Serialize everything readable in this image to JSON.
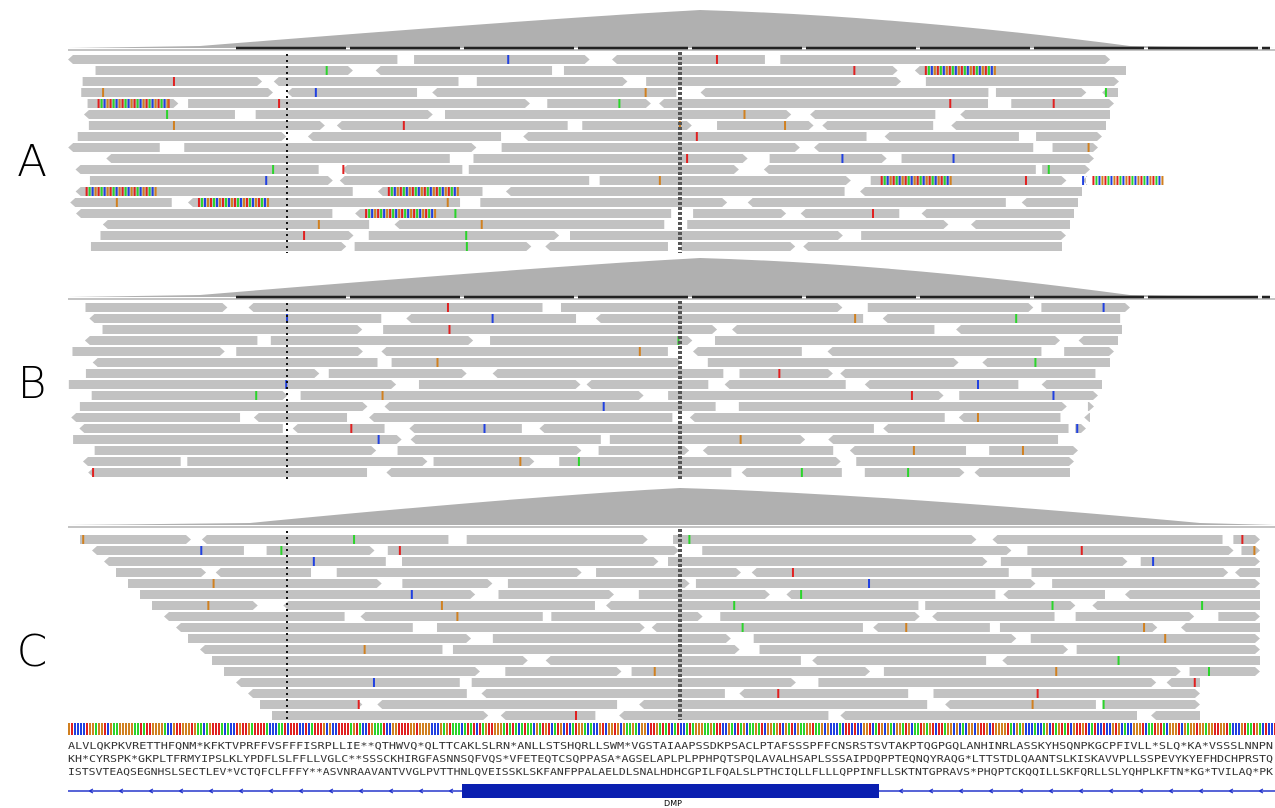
{
  "panels": [
    {
      "label": "A"
    },
    {
      "label": "B"
    },
    {
      "label": "C"
    }
  ],
  "translation": {
    "frames": [
      "ALVLQKPKVRETTHFQNM*KFKTVPRFFVSFFFISRPLLIE**QTHWVQ*QLTTCAKLSLRN*ANLLSTSHQRLLSWM*VGSTAIAAPSSDKPSACLPTAFSSSPFFCNSRSTSVTAKPTQGPGQLANHINRLASSKYHSQNPKGCPFIVLL*SLQ*KA*VSSSLNNPN",
      "KH*CYRSPK*GKPLTFRMYIPSLKLYPDFLSLFFLLVGLC**SSSCKHIRGFASNNSQFVQS*VFETEQTCSQPPASA*AGSELAPLPLPPHPQTSPQLAVALHSAPLSSSAIPDQPPTEQNQYRAQG*LTTSTDLQAANTSLKISKAVVPLLSSPEVYKYEFHDCHPRSTQ",
      "ISTSVTEAQSEGNHSLSECTLEV*VCTQFCLFFFY**ASVNRAAVANTVVGLPVTTHNLQVEISSKLSKFANFPPALAELDLSNALHDHCGPILFQALSLPTHCIQLLFLLLQPPINFLLSKTNTGPRAVS*PHQPTCKQQILLSKFQRLLSLYQHPLKFTN*KG*TVILAQ*PK"
    ]
  },
  "gene": {
    "name": "DMP"
  }
}
